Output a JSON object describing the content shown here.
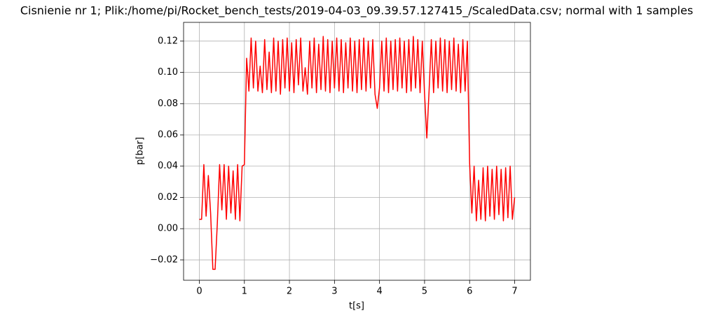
{
  "chart_data": {
    "type": "line",
    "title": "Cisnienie nr 1; Plik:/home/pi/Rocket_bench_tests/2019-04-03_09.39.57.127415_/ScaledData.csv; normal with 1 samples",
    "x_label": "t[s]",
    "y_label": "p[bar]",
    "xlim": [
      -0.35,
      7.35
    ],
    "xticks": [
      0,
      1,
      2,
      3,
      4,
      5,
      6,
      7
    ],
    "ylim": [
      -0.033,
      0.132
    ],
    "yticks": [
      {
        "value": -0.02,
        "label": "−0.02"
      },
      {
        "value": 0,
        "label": "0.00"
      },
      0.02,
      0.04,
      0.06,
      0.08,
      {
        "value": 0.1,
        "label": "0.10"
      },
      0.12
    ],
    "grid": true,
    "x": [
      0,
      0.05,
      0.1,
      0.15,
      0.2,
      0.25,
      0.3,
      0.35,
      0.4,
      0.45,
      0.5,
      0.55,
      0.6,
      0.65,
      0.7,
      0.75,
      0.8,
      0.85,
      0.9,
      0.95,
      1,
      1.05,
      1.1,
      1.15,
      1.2,
      1.25,
      1.3,
      1.35,
      1.4,
      1.45,
      1.5,
      1.55,
      1.6,
      1.65,
      1.7,
      1.75,
      1.8,
      1.85,
      1.9,
      1.95,
      2,
      2.05,
      2.1,
      2.15,
      2.2,
      2.25,
      2.3,
      2.35,
      2.4,
      2.45,
      2.5,
      2.55,
      2.6,
      2.65,
      2.7,
      2.75,
      2.8,
      2.85,
      2.9,
      2.95,
      3,
      3.05,
      3.1,
      3.15,
      3.2,
      3.25,
      3.3,
      3.35,
      3.4,
      3.45,
      3.5,
      3.55,
      3.6,
      3.65,
      3.7,
      3.75,
      3.8,
      3.85,
      3.9,
      3.95,
      4,
      4.05,
      4.1,
      4.15,
      4.2,
      4.25,
      4.3,
      4.35,
      4.4,
      4.45,
      4.5,
      4.55,
      4.6,
      4.65,
      4.7,
      4.75,
      4.8,
      4.85,
      4.9,
      4.95,
      5,
      5.05,
      5.1,
      5.15,
      5.2,
      5.25,
      5.3,
      5.35,
      5.4,
      5.45,
      5.5,
      5.55,
      5.6,
      5.65,
      5.7,
      5.75,
      5.8,
      5.85,
      5.9,
      5.95,
      6,
      6.05,
      6.1,
      6.15,
      6.2,
      6.25,
      6.3,
      6.35,
      6.4,
      6.45,
      6.5,
      6.55,
      6.6,
      6.65,
      6.7,
      6.75,
      6.8,
      6.85,
      6.9,
      6.95,
      7
    ],
    "series": [
      {
        "color": "#ff0000",
        "values": [
          0.006,
          0.006,
          0.041,
          0.008,
          0.034,
          0.01,
          -0.026,
          -0.026,
          0.004,
          0.041,
          0.012,
          0.041,
          0.006,
          0.04,
          0.01,
          0.037,
          0.006,
          0.041,
          0.005,
          0.04,
          0.041,
          0.109,
          0.088,
          0.122,
          0.09,
          0.12,
          0.088,
          0.104,
          0.087,
          0.121,
          0.089,
          0.113,
          0.087,
          0.122,
          0.088,
          0.12,
          0.086,
          0.121,
          0.09,
          0.122,
          0.088,
          0.119,
          0.087,
          0.121,
          0.092,
          0.122,
          0.088,
          0.103,
          0.086,
          0.12,
          0.09,
          0.122,
          0.087,
          0.118,
          0.089,
          0.123,
          0.088,
          0.121,
          0.087,
          0.12,
          0.09,
          0.122,
          0.088,
          0.121,
          0.087,
          0.119,
          0.09,
          0.122,
          0.088,
          0.12,
          0.087,
          0.121,
          0.089,
          0.122,
          0.088,
          0.12,
          0.09,
          0.121,
          0.086,
          0.077,
          0.09,
          0.12,
          0.088,
          0.122,
          0.087,
          0.12,
          0.089,
          0.121,
          0.088,
          0.122,
          0.09,
          0.12,
          0.087,
          0.121,
          0.088,
          0.123,
          0.09,
          0.121,
          0.087,
          0.12,
          0.086,
          0.058,
          0.088,
          0.121,
          0.087,
          0.12,
          0.09,
          0.122,
          0.088,
          0.121,
          0.087,
          0.12,
          0.089,
          0.122,
          0.088,
          0.118,
          0.087,
          0.121,
          0.088,
          0.12,
          0.042,
          0.01,
          0.04,
          0.005,
          0.031,
          0.006,
          0.039,
          0.005,
          0.04,
          0.008,
          0.038,
          0.006,
          0.04,
          0.009,
          0.038,
          0.005,
          0.039,
          0.007,
          0.04,
          0.006,
          0.02
        ]
      }
    ]
  }
}
